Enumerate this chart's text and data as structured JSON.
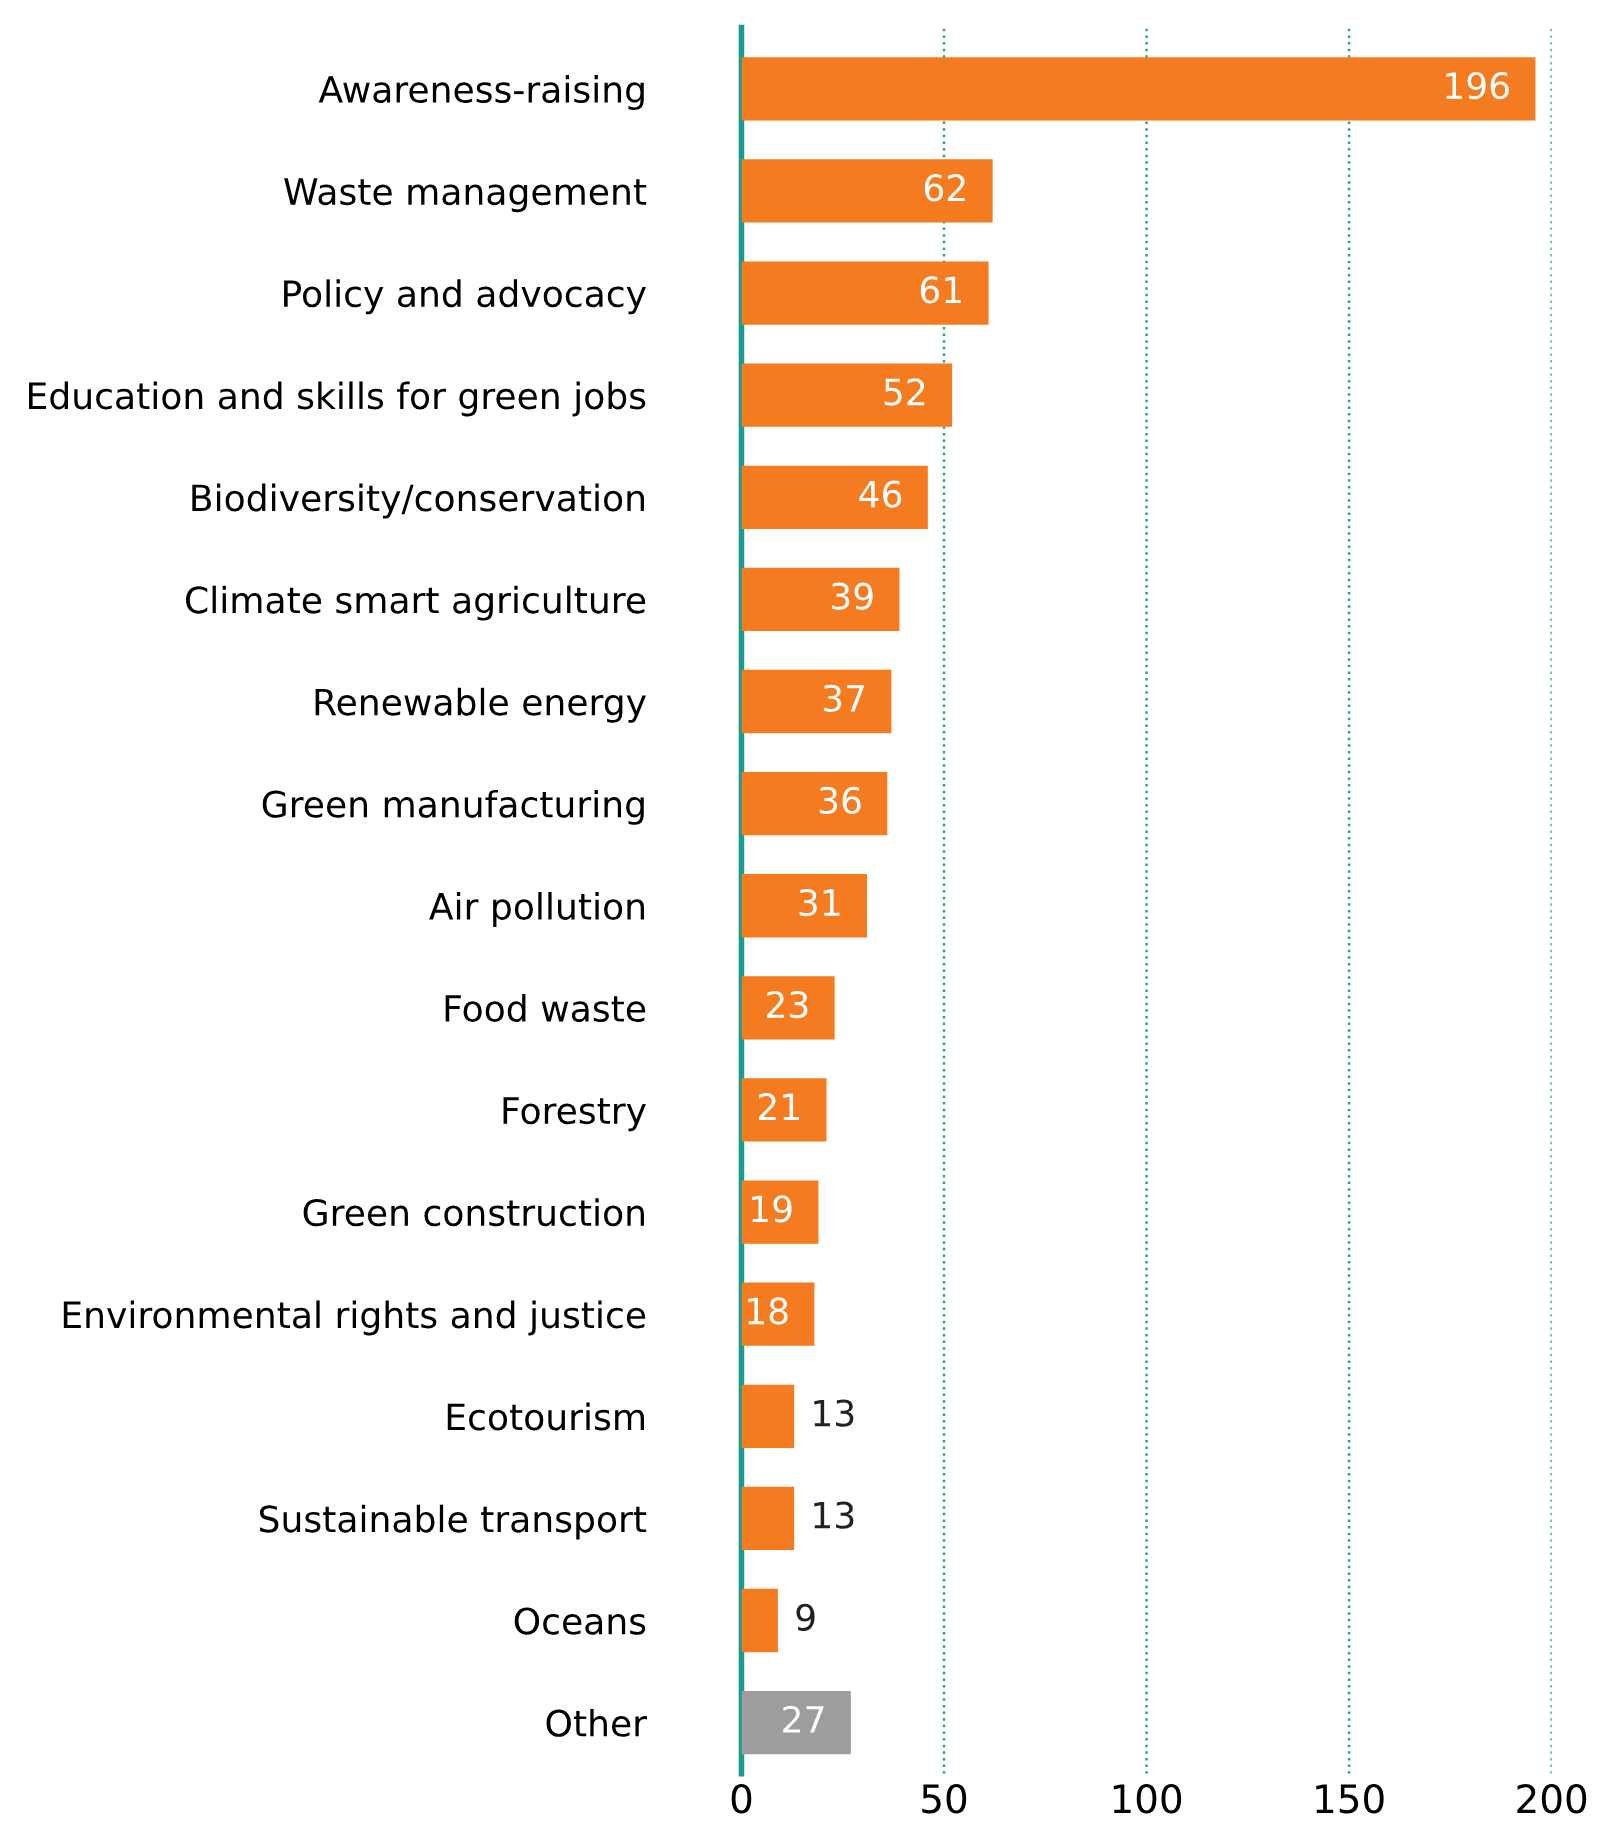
{
  "chart_data": {
    "type": "bar",
    "orientation": "horizontal",
    "categories": [
      "Awareness-raising",
      "Waste management",
      "Policy and advocacy",
      "Education and skills for green jobs",
      "Biodiversity/conservation",
      "Climate smart agriculture",
      "Renewable energy",
      "Green manufacturing",
      "Air pollution",
      "Food waste",
      "Forestry",
      "Green construction",
      "Environmental rights and justice",
      "Ecotourism",
      "Sustainable transport",
      "Oceans",
      "Other"
    ],
    "values": [
      196,
      62,
      61,
      52,
      46,
      39,
      37,
      36,
      31,
      23,
      21,
      19,
      18,
      13,
      13,
      9,
      27
    ],
    "colors": [
      "#f47b20",
      "#f47b20",
      "#f47b20",
      "#f47b20",
      "#f47b20",
      "#f47b20",
      "#f47b20",
      "#f47b20",
      "#f47b20",
      "#f47b20",
      "#f47b20",
      "#f47b20",
      "#f47b20",
      "#f47b20",
      "#f47b20",
      "#f47b20",
      "#9d9d9f"
    ],
    "xlim": [
      0,
      200
    ],
    "xticks": [
      0,
      50,
      100,
      150,
      200
    ],
    "grid": "x",
    "data_labels": true
  }
}
